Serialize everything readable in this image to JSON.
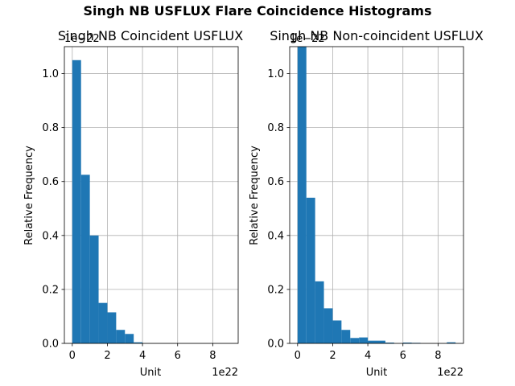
{
  "chart_data": {
    "suptitle": "Singh NB USFLUX Flare Coincidence Histograms",
    "colors": {
      "bar": "#1f77b4",
      "grid": "#b0b0b0",
      "axis": "#000000",
      "background": "#ffffff"
    },
    "charts": [
      {
        "type": "bar",
        "title": "Singh NB Coincident USFLUX",
        "xlabel": "Unit",
        "ylabel": "Relative Frequency",
        "x_offset_label": "1e22",
        "y_offset_label": "1e−22",
        "xlim": [
          -0.45,
          9.45
        ],
        "ylim": [
          0,
          1.1
        ],
        "xticks": [
          0,
          2,
          4,
          6,
          8
        ],
        "yticks": [
          0.0,
          0.2,
          0.4,
          0.6,
          0.8,
          1.0
        ],
        "grid": true,
        "bin_width": 0.5,
        "bins_x": [
          0.0,
          0.5,
          1.0,
          1.5,
          2.0,
          2.5,
          3.0,
          3.5
        ],
        "values": [
          1.05,
          0.625,
          0.4,
          0.15,
          0.115,
          0.05,
          0.035,
          0.004
        ]
      },
      {
        "type": "bar",
        "title": "Singh NB Non-coincident USFLUX",
        "xlabel": "Unit",
        "ylabel": "Relative Frequency",
        "x_offset_label": "1e22",
        "y_offset_label": "1e−22",
        "xlim": [
          -0.45,
          9.45
        ],
        "ylim": [
          0,
          1.1
        ],
        "xticks": [
          0,
          2,
          4,
          6,
          8
        ],
        "yticks": [
          0.0,
          0.2,
          0.4,
          0.6,
          0.8,
          1.0
        ],
        "grid": true,
        "bin_width": 0.5,
        "bins_x": [
          0.0,
          0.5,
          1.0,
          1.5,
          2.0,
          2.5,
          3.0,
          3.5,
          4.0,
          4.5,
          5.0,
          5.5,
          6.0,
          6.5,
          7.0,
          7.5,
          8.0,
          8.5
        ],
        "values": [
          1.11,
          0.54,
          0.23,
          0.13,
          0.085,
          0.05,
          0.02,
          0.022,
          0.01,
          0.01,
          0.003,
          0.0,
          0.003,
          0.002,
          0.0,
          0.0,
          0.0,
          0.004
        ]
      }
    ]
  }
}
